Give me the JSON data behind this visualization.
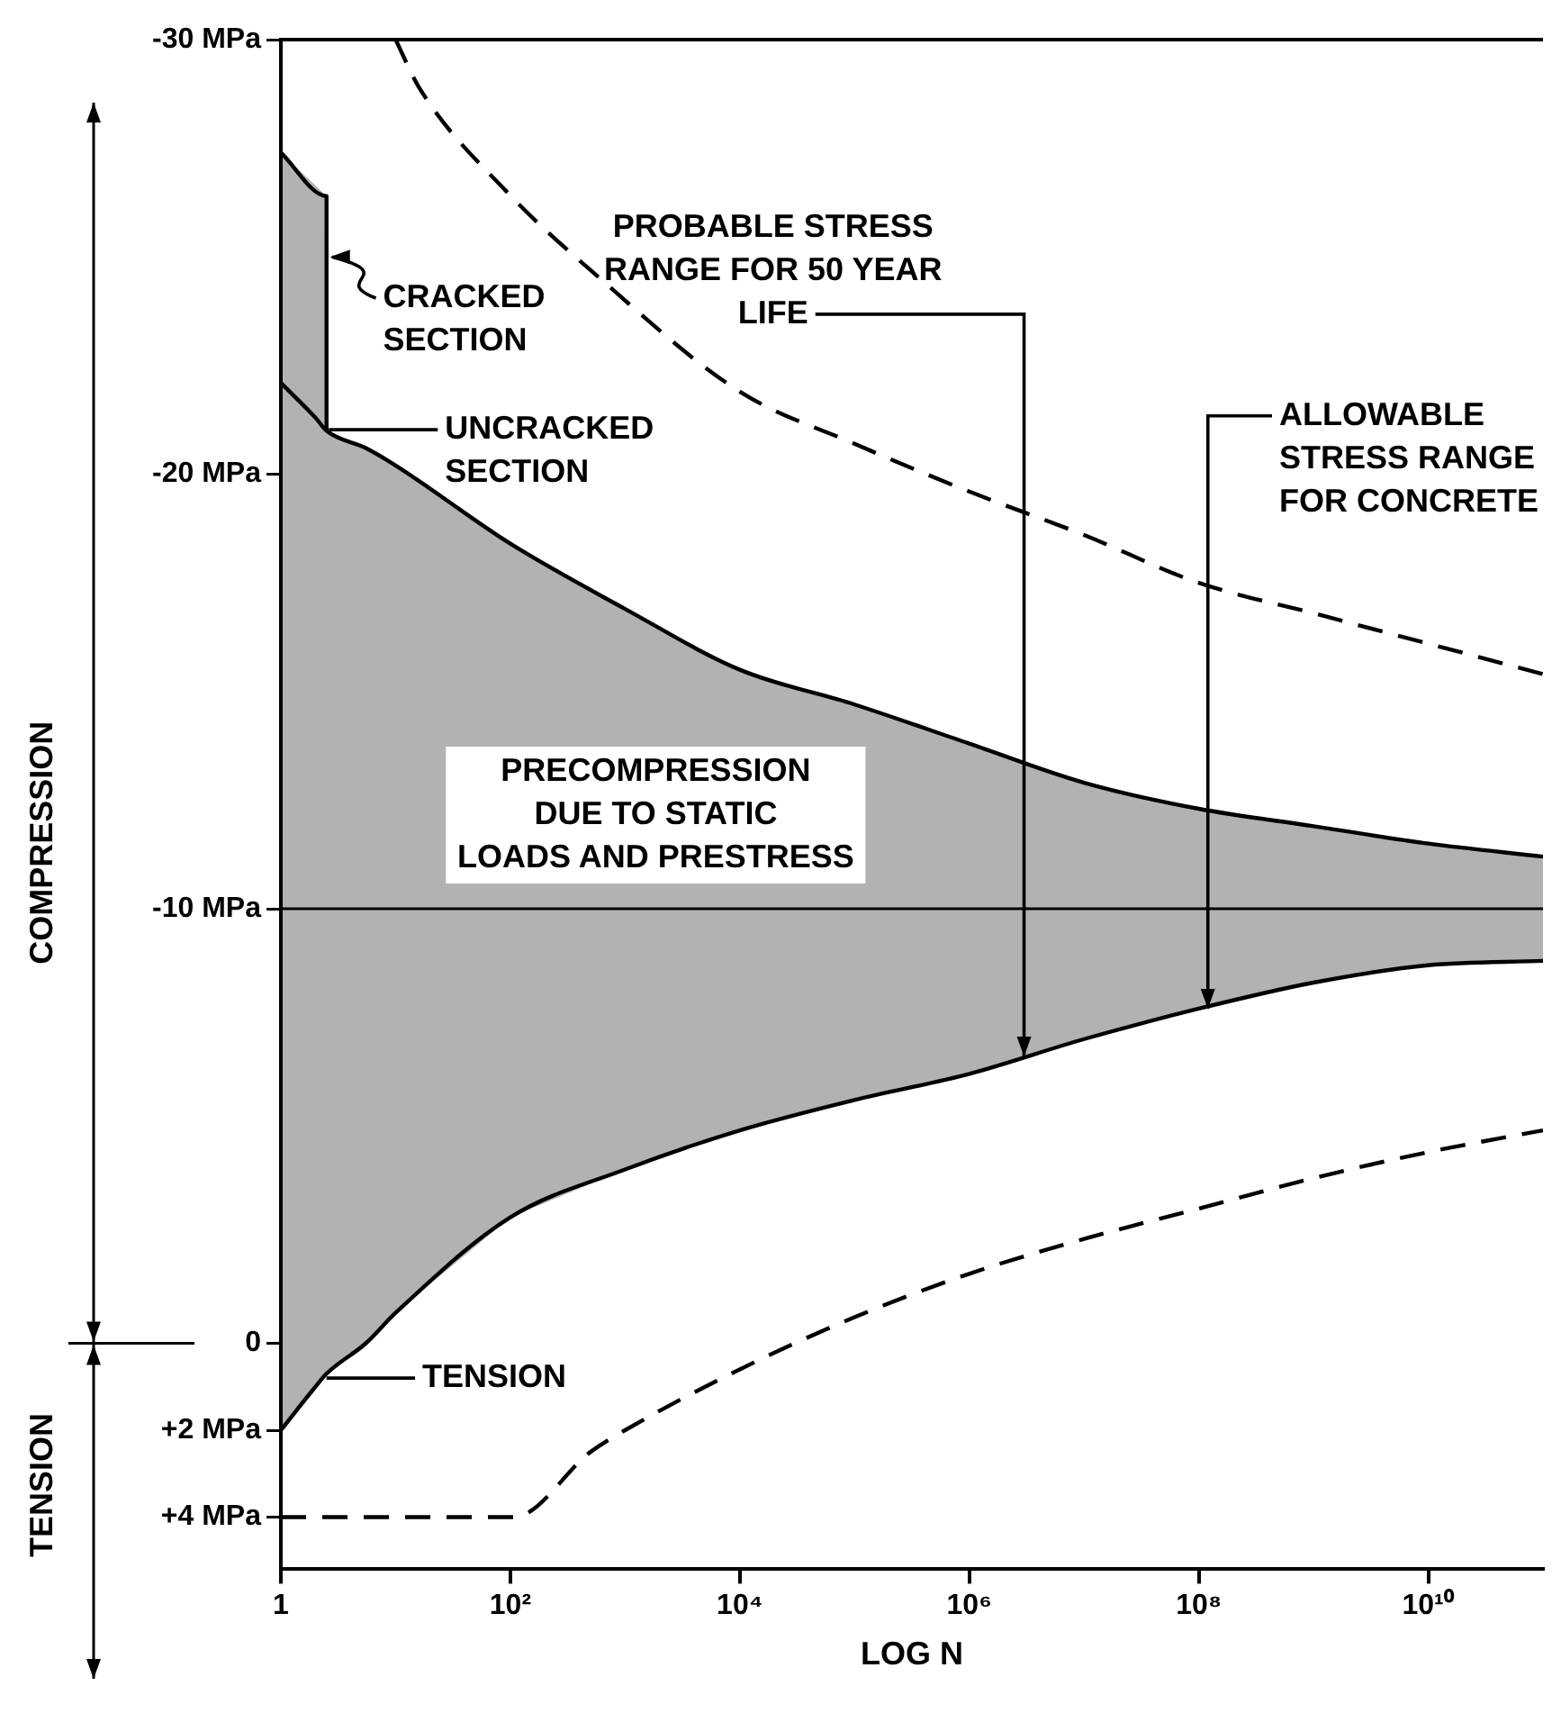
{
  "chart_data": {
    "type": "line",
    "xlabel": "LOG N",
    "log": "x",
    "marker": "none",
    "xlim": [
      1,
      100000000000
    ],
    "xticks": [
      1,
      {
        "value": 100,
        "label": "10²"
      },
      {
        "value": 10000,
        "label": "10⁴"
      },
      {
        "value": 1000000,
        "label": "10⁶"
      },
      {
        "value": 100000000,
        "label": "10⁸"
      },
      {
        "value": 10000000000,
        "label": "10¹⁰"
      }
    ],
    "ylim": [
      5.2,
      -30
    ],
    "yticks": [
      {
        "value": -30,
        "label": "-30 MPa"
      },
      {
        "value": -20,
        "label": "-20 MPa"
      },
      {
        "value": -10,
        "label": "-10 MPa"
      },
      0,
      {
        "value": 2,
        "label": "+2 MPa"
      },
      {
        "value": 4,
        "label": "+4 MPa"
      }
    ],
    "series": [
      {
        "color": "#000000",
        "line_style": "solid",
        "x": [
          1,
          2.5,
          2.5
        ],
        "values": [
          -27.4,
          -26.4,
          -21.0
        ],
        "lower": [
          -27.4,
          -26.4,
          -21.0
        ],
        "upper": [
          -22.1,
          -21.0,
          -21.0
        ]
      },
      {
        "color": "#000000",
        "line_style": "solid",
        "x": [
          1,
          2,
          2.5,
          5.5,
          10,
          100,
          1000,
          10000,
          100000,
          1000000,
          10000000,
          100000000,
          1000000000,
          10000000000,
          100000000000
        ],
        "values": [
          -22.1,
          -21.3,
          -21.0,
          -20.6,
          -20.2,
          -18.4,
          -16.9,
          -15.5,
          -14.7,
          -13.8,
          -12.9,
          -12.3,
          -11.9,
          -11.5,
          -11.2
        ]
      },
      {
        "color": "#000000",
        "line_style": "solid",
        "x": [
          1,
          2,
          2.5,
          5.5,
          10,
          100,
          1000,
          10000,
          100000,
          1000000,
          10000000,
          100000000,
          1000000000,
          10000000000,
          100000000000
        ],
        "values": [
          2.0,
          1.0,
          0.7,
          0,
          -0.7,
          -2.9,
          -4.0,
          -4.9,
          -5.6,
          -6.2,
          -7.0,
          -7.7,
          -8.3,
          -8.7,
          -8.8
        ],
        "lower": [
          -22.1,
          -21.3,
          -21.0,
          -20.6,
          -20.2,
          -18.4,
          -16.9,
          -15.5,
          -14.7,
          -13.8,
          -12.9,
          -12.3,
          -11.9,
          -11.5,
          -11.2
        ],
        "upper": [
          2.0,
          1.0,
          0.7,
          0,
          -0.7,
          -2.9,
          -4.0,
          -4.9,
          -5.6,
          -6.2,
          -7.0,
          -7.7,
          -8.3,
          -8.7,
          -8.8
        ]
      },
      {
        "color": "#000000",
        "line_style": "dashed",
        "x": [
          10,
          16,
          93,
          550,
          10000,
          100000,
          1000000,
          10000000,
          100000000,
          1000000000,
          10000000000,
          100000000000
        ],
        "values": [
          -30,
          -28.9,
          -26.5,
          -24.6,
          -21.9,
          -20.7,
          -19.6,
          -18.6,
          -17.5,
          -16.8,
          -16.1,
          -15.4
        ]
      },
      {
        "color": "#000000",
        "line_style": "dashed",
        "x": [
          1,
          107,
          500,
          1000,
          10000,
          100000,
          1000000,
          10000000,
          100000000,
          1000000000,
          10000000000,
          100000000000
        ],
        "values": [
          4,
          4,
          2.5,
          2.0,
          0.6,
          -0.6,
          -1.6,
          -2.4,
          -3.1,
          -3.8,
          -4.4,
          -4.9
        ]
      }
    ],
    "ref_lines": [
      {
        "axis": "y",
        "value": -10,
        "color": "#000000"
      }
    ],
    "annotations": [
      {
        "text": "CRACKED SECTION",
        "x": 2.5,
        "y": -25
      },
      "UNCRACKED SECTION",
      {
        "text": "TENSION",
        "x": 2.5,
        "y": 0.8
      },
      "PRECOMPRESSION DUE TO STATIC LOADS AND PRESTRESS",
      {
        "text": "PROBABLE STRESS RANGE FOR 50 YEAR LIFE",
        "x": 3000000,
        "y": -6.6
      },
      {
        "text": "ALLOWABLE STRESS RANGE FOR CONCRETE",
        "x": 120000000,
        "y": -7.7
      },
      "COMPRESSION",
      "TENSION"
    ]
  }
}
